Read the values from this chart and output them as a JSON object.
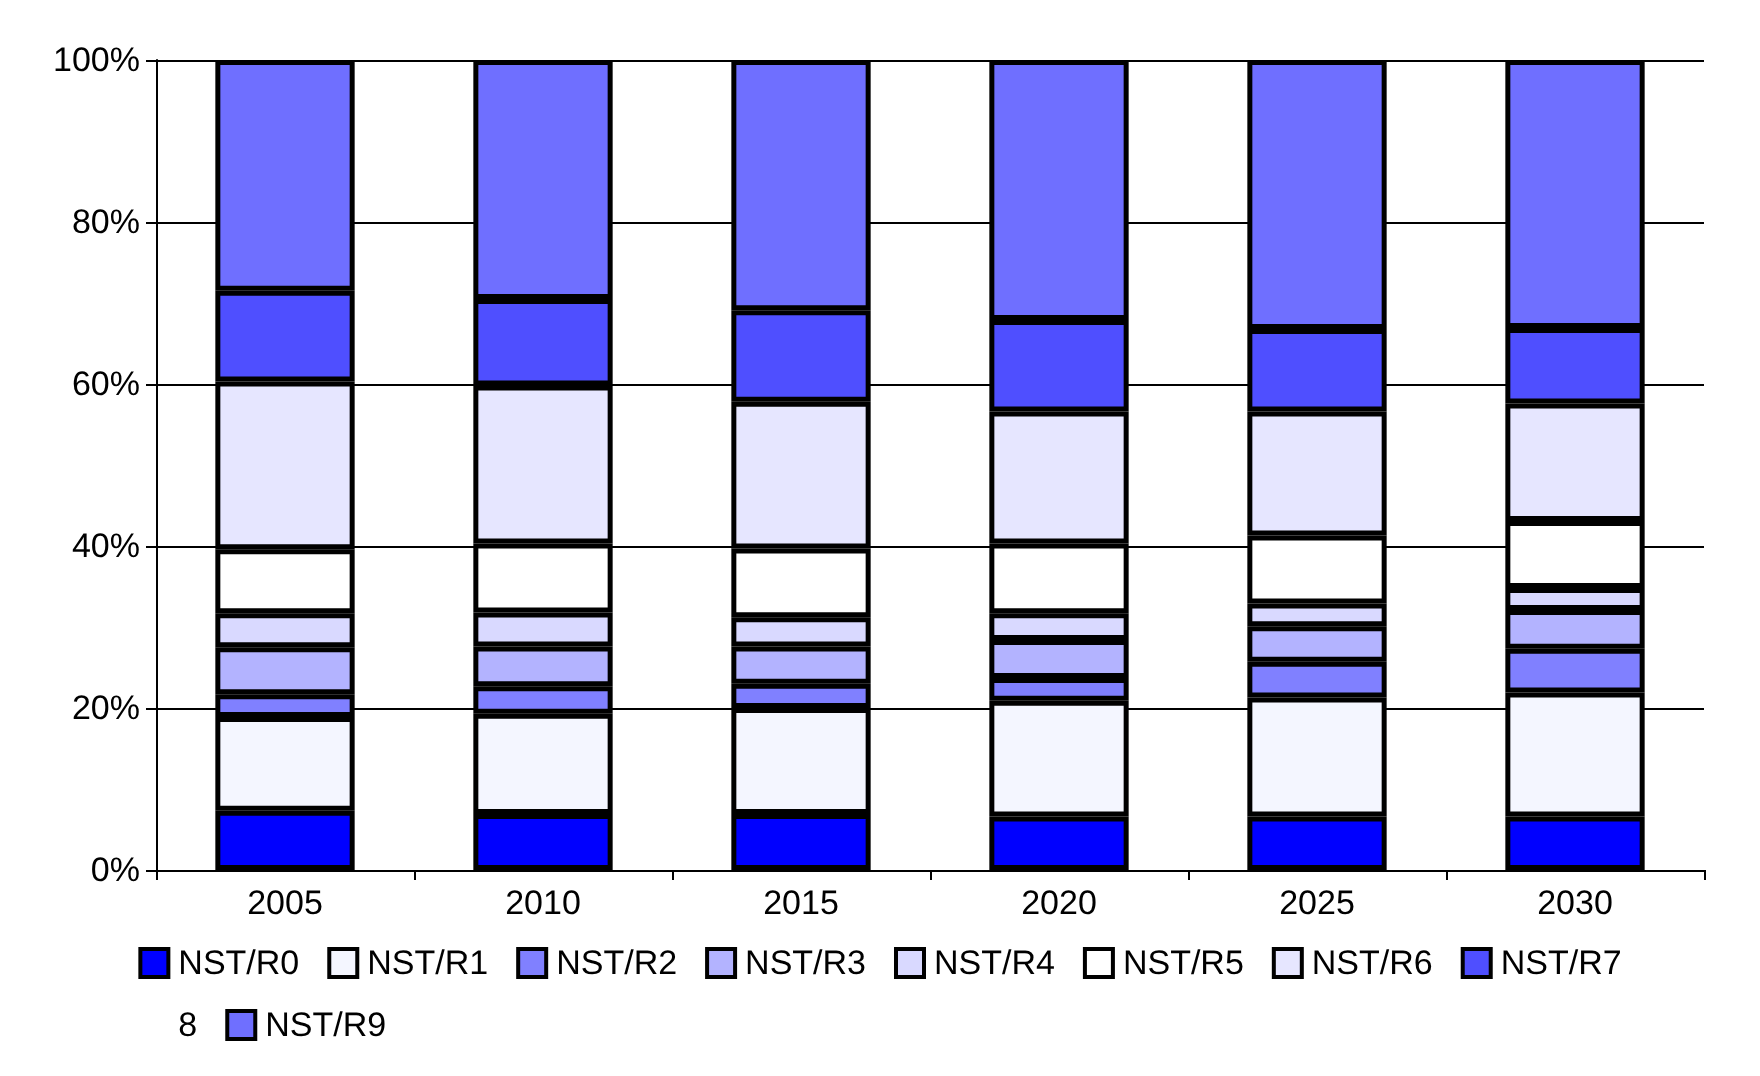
{
  "chart_data": {
    "type": "bar",
    "stacked": true,
    "categories": [
      "2005",
      "2010",
      "2015",
      "2020",
      "2025",
      "2030"
    ],
    "ylim": [
      0,
      100
    ],
    "yticks": [
      {
        "value": 0,
        "label": "0%"
      },
      {
        "value": 20,
        "label": "20%"
      },
      {
        "value": 40,
        "label": "40%"
      },
      {
        "value": 60,
        "label": "60%"
      },
      {
        "value": 80,
        "label": "80%"
      },
      {
        "value": 100,
        "label": "100%"
      }
    ],
    "grid": "y",
    "legend": "bottom",
    "series": [
      {
        "name": "NST/R0",
        "color": "#0000ff",
        "values": [
          7.3,
          6.9,
          6.9,
          6.6,
          6.6,
          6.6
        ]
      },
      {
        "name": "NST/R1",
        "color": "#f4f6ff",
        "values": [
          11.6,
          12.4,
          13.1,
          14.3,
          14.7,
          15.3
        ]
      },
      {
        "name": "NST/R2",
        "color": "#8080ff",
        "values": [
          2.8,
          3.4,
          3.0,
          2.8,
          4.4,
          5.4
        ]
      },
      {
        "name": "NST/R3",
        "color": "#b3b3ff",
        "values": [
          5.8,
          4.9,
          4.6,
          4.7,
          4.4,
          4.8
        ]
      },
      {
        "name": "NST/R4",
        "color": "#d9d9ff",
        "values": [
          4.2,
          4.2,
          3.6,
          3.3,
          2.8,
          2.7
        ]
      },
      {
        "name": "NST/R5",
        "color": "#ffffff",
        "values": [
          7.9,
          8.5,
          8.5,
          8.6,
          8.4,
          8.3
        ]
      },
      {
        "name": "NST/R6",
        "color": "#e6e6ff",
        "values": [
          20.7,
          19.5,
          18.1,
          16.3,
          15.3,
          14.5
        ]
      },
      {
        "name": "NST/R7",
        "color": "#4f4fff",
        "values": [
          11.2,
          10.7,
          11.3,
          11.3,
          10.2,
          9.3
        ]
      },
      {
        "name": "8",
        "values": [
          null,
          null,
          null,
          null,
          null,
          null
        ]
      },
      {
        "name": "NST/R9",
        "color": "#6f6fff",
        "values": [
          28.5,
          29.5,
          30.9,
          32.1,
          33.2,
          33.1
        ]
      }
    ]
  }
}
